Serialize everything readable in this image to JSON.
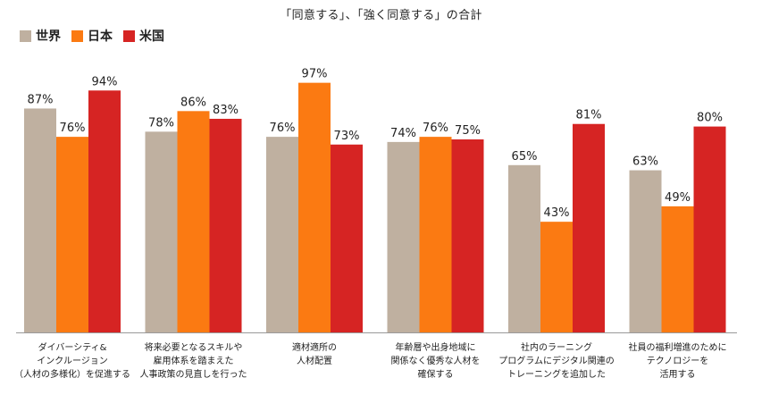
{
  "chart_data": {
    "type": "bar",
    "title": "「同意する」、「強く同意する」の合計",
    "categories": [
      [
        "ダイバーシティ&",
        "インクルージョン",
        "（人材の多様化）を促進する"
      ],
      [
        "将来必要となるスキルや",
        "雇用体系を踏まえた",
        "人事政策の見直しを行った"
      ],
      [
        "適材適所の",
        "人材配置"
      ],
      [
        "年齢層や出身地域に",
        "関係なく優秀な人材を",
        "確保する"
      ],
      [
        "社内のラーニング",
        "プログラムにデジタル関連の",
        "トレーニングを追加した"
      ],
      [
        "社員の福利増進のために",
        "テクノロジーを",
        "活用する"
      ]
    ],
    "series": [
      {
        "name": "世界",
        "color": "#bfb0a0",
        "values": [
          87,
          78,
          76,
          74,
          65,
          63
        ]
      },
      {
        "name": "日本",
        "color": "#fb7a12",
        "values": [
          76,
          86,
          97,
          76,
          43,
          49
        ]
      },
      {
        "name": "米国",
        "color": "#d62423",
        "values": [
          94,
          83,
          73,
          75,
          81,
          80
        ]
      }
    ],
    "value_suffix": "%",
    "ylim": [
      0,
      100
    ],
    "grid": false,
    "legend": "top-left"
  }
}
